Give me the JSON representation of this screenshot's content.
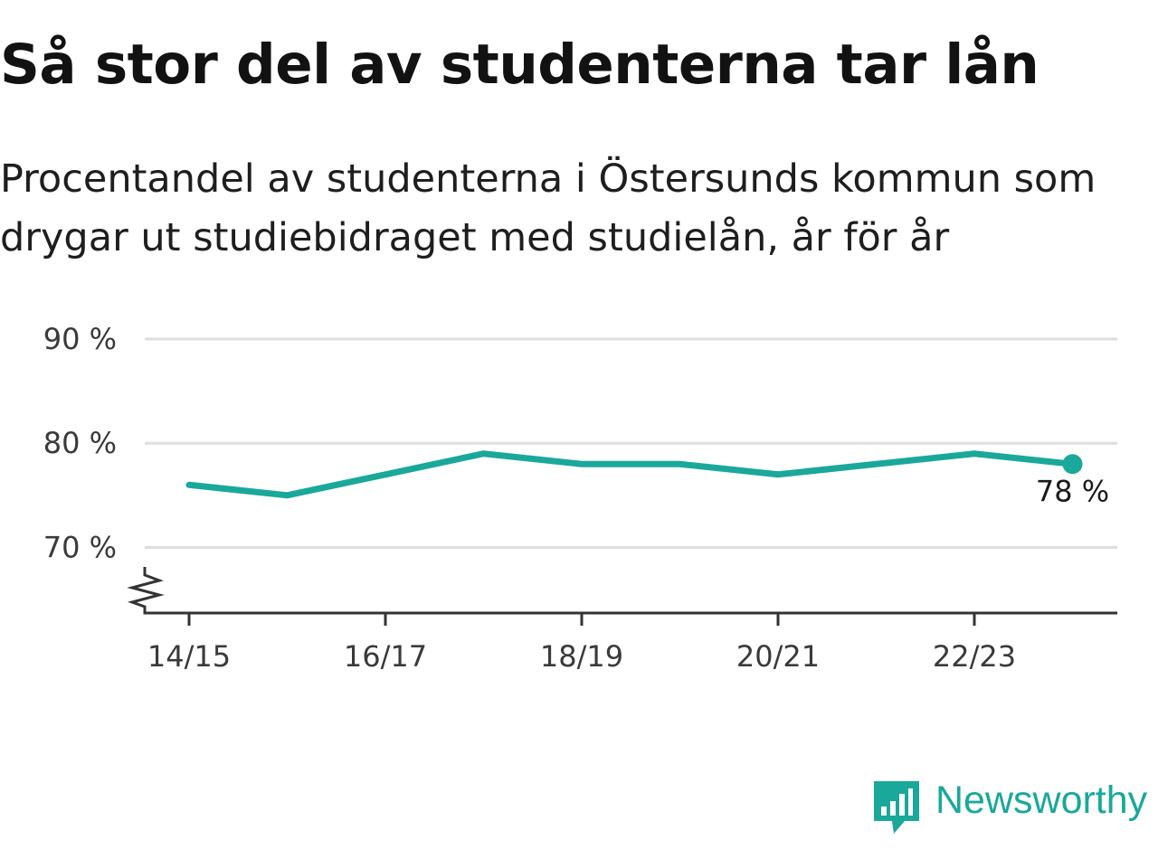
{
  "title": "Så stor del av studenterna tar lån",
  "subtitle": "Procentandel av studenterna i Östersunds kommun som drygar ut studiebidraget med studielån, år för år",
  "brand": {
    "name": "Newsworthy",
    "icon": "chart-bubble-icon"
  },
  "colors": {
    "line": "#1aa89a",
    "grid": "#dddddd",
    "axis": "#333333"
  },
  "chart_data": {
    "type": "line",
    "title": "Så stor del av studenterna tar lån",
    "categories": [
      "14/15",
      "15/16",
      "16/17",
      "17/18",
      "18/19",
      "19/20",
      "20/21",
      "21/22",
      "22/23",
      "23/24"
    ],
    "series": [
      {
        "values": [
          76,
          75,
          77,
          79,
          78,
          78,
          77,
          78,
          79,
          78
        ]
      }
    ],
    "x_tick_labels": [
      "14/15",
      "16/17",
      "18/19",
      "20/21",
      "22/23"
    ],
    "y_ticks": [
      {
        "value": 70,
        "label": "70 %"
      },
      {
        "value": 80,
        "label": "80 %"
      },
      {
        "value": 90,
        "label": "90 %"
      }
    ],
    "ylim": [
      63.7,
      90
    ],
    "y_axis_break": true,
    "grid": true,
    "end_label": "78 %"
  }
}
